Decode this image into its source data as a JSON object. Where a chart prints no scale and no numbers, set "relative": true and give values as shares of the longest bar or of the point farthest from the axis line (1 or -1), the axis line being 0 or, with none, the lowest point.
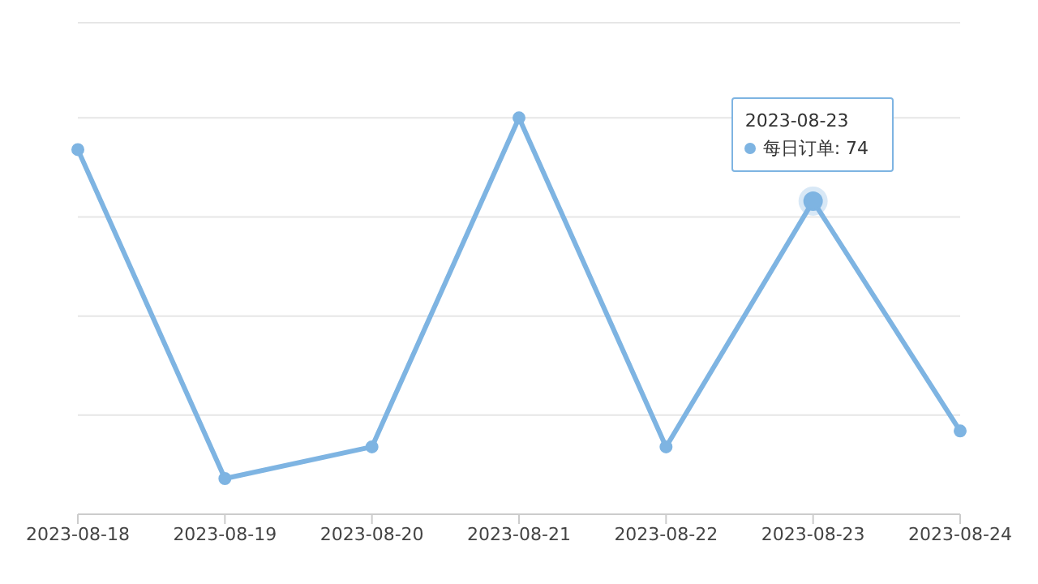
{
  "chart_data": {
    "type": "line",
    "relative": true,
    "categories": [
      "2023-08-18",
      "2023-08-19",
      "2023-08-20",
      "2023-08-21",
      "2023-08-22",
      "2023-08-23",
      "2023-08-24"
    ],
    "series": [
      {
        "name": "每日订单",
        "color": "#7eb4e2",
        "values": [
          0.92,
          0.09,
          0.17,
          1,
          0.17,
          0.79,
          0.21
        ]
      }
    ],
    "grid": "y",
    "marker": "circle",
    "legend": "top right",
    "annotations": [
      "2023-08-23",
      ": 74"
    ]
  }
}
